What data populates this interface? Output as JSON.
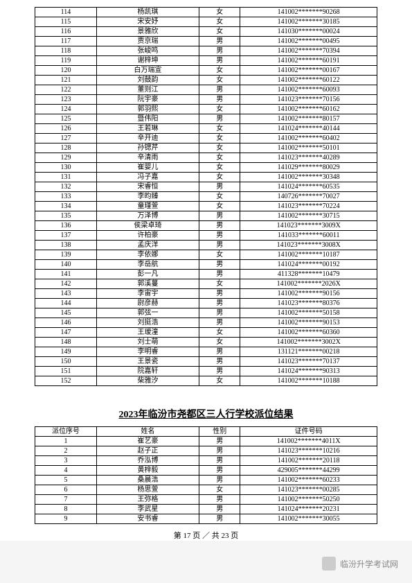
{
  "table1": {
    "rows": [
      [
        "114",
        "杨凯琪",
        "女",
        "141002*******90268"
      ],
      [
        "115",
        "宋安妤",
        "女",
        "141002*******30185"
      ],
      [
        "116",
        "景雅欣",
        "女",
        "141030*******00024"
      ],
      [
        "117",
        "贾京瑞",
        "男",
        "141002*******00495"
      ],
      [
        "118",
        "张峻鸣",
        "男",
        "141002*******70394"
      ],
      [
        "119",
        "谢梓坤",
        "男",
        "141002*******60191"
      ],
      [
        "120",
        "白万瑞宣",
        "女",
        "141002*******00167"
      ],
      [
        "121",
        "刘鼓韵",
        "女",
        "141002*******60122"
      ],
      [
        "122",
        "董则江",
        "男",
        "141002*******60093"
      ],
      [
        "123",
        "阮宇豪",
        "男",
        "141023*******70156"
      ],
      [
        "124",
        "郭羽熙",
        "女",
        "141002*******60162"
      ],
      [
        "125",
        "暨伟阳",
        "男",
        "141002*******80157"
      ],
      [
        "126",
        "王若琳",
        "女",
        "141024*******40144"
      ],
      [
        "127",
        "辛开迪",
        "女",
        "141002*******60402"
      ],
      [
        "128",
        "孙锶芹",
        "女",
        "141002*******50101"
      ],
      [
        "129",
        "辛清雨",
        "女",
        "141023*******40289"
      ],
      [
        "130",
        "崔婴儿",
        "女",
        "141029*******80029"
      ],
      [
        "131",
        "冯子嘉",
        "女",
        "141002*******30348"
      ],
      [
        "132",
        "宋睿恒",
        "男",
        "141024*******60535"
      ],
      [
        "133",
        "李昀臻",
        "女",
        "140726*******70027"
      ],
      [
        "134",
        "童瑾萱",
        "女",
        "141023*******70224"
      ],
      [
        "135",
        "万泽博",
        "男",
        "141002*******30715"
      ],
      [
        "136",
        "侯梁卓琦",
        "男",
        "141023*******3009X"
      ],
      [
        "137",
        "许柏豪",
        "男",
        "141033*******60011"
      ],
      [
        "138",
        "孟庆洋",
        "男",
        "141023*******3008X"
      ],
      [
        "139",
        "李依娜",
        "女",
        "141002*******10187"
      ],
      [
        "140",
        "李岳航",
        "男",
        "141024*******00192"
      ],
      [
        "141",
        "彭一凡",
        "男",
        "411328*******10479"
      ],
      [
        "142",
        "郭溪蔓",
        "女",
        "141002*******2026X"
      ],
      [
        "143",
        "李宙宇",
        "男",
        "141002*******90156"
      ],
      [
        "144",
        "尉彦赫",
        "男",
        "141023*******80376"
      ],
      [
        "145",
        "郭弦一",
        "男",
        "141002*******50158"
      ],
      [
        "146",
        "刘挺浩",
        "男",
        "141002*******90153"
      ],
      [
        "147",
        "王瑷潼",
        "女",
        "141002*******60360"
      ],
      [
        "148",
        "刘士萌",
        "女",
        "141002*******3002X"
      ],
      [
        "149",
        "李明睿",
        "男",
        "131121*******00218"
      ],
      [
        "150",
        "王景瓷",
        "男",
        "141023*******70137"
      ],
      [
        "151",
        "院嘉轩",
        "男",
        "141024*******90313"
      ],
      [
        "152",
        "柴雅汐",
        "女",
        "141002*******10188"
      ]
    ]
  },
  "section2": {
    "title": "2023年临汾市尧都区三人行学校派位结果",
    "headers": [
      "派位序号",
      "姓名",
      "性别",
      "证件号码"
    ],
    "rows": [
      [
        "1",
        "崔艺豪",
        "男",
        "141002*******4011X"
      ],
      [
        "2",
        "赵子正",
        "男",
        "141023*******10216"
      ],
      [
        "3",
        "乔泓博",
        "男",
        "141002*******20118"
      ],
      [
        "4",
        "黄梓毅",
        "男",
        "429005*******44299"
      ],
      [
        "5",
        "桑晨浩",
        "男",
        "141002*******60233"
      ],
      [
        "6",
        "杨思萱",
        "女",
        "141023*******00285"
      ],
      [
        "7",
        "王弥格",
        "男",
        "141002*******50250"
      ],
      [
        "8",
        "李武星",
        "男",
        "141024*******20231"
      ],
      [
        "9",
        "安书睿",
        "男",
        "141002*******30055"
      ]
    ]
  },
  "footer": "第 17 页 ／ 共 23 页",
  "watermark": "临汾升学考试网"
}
